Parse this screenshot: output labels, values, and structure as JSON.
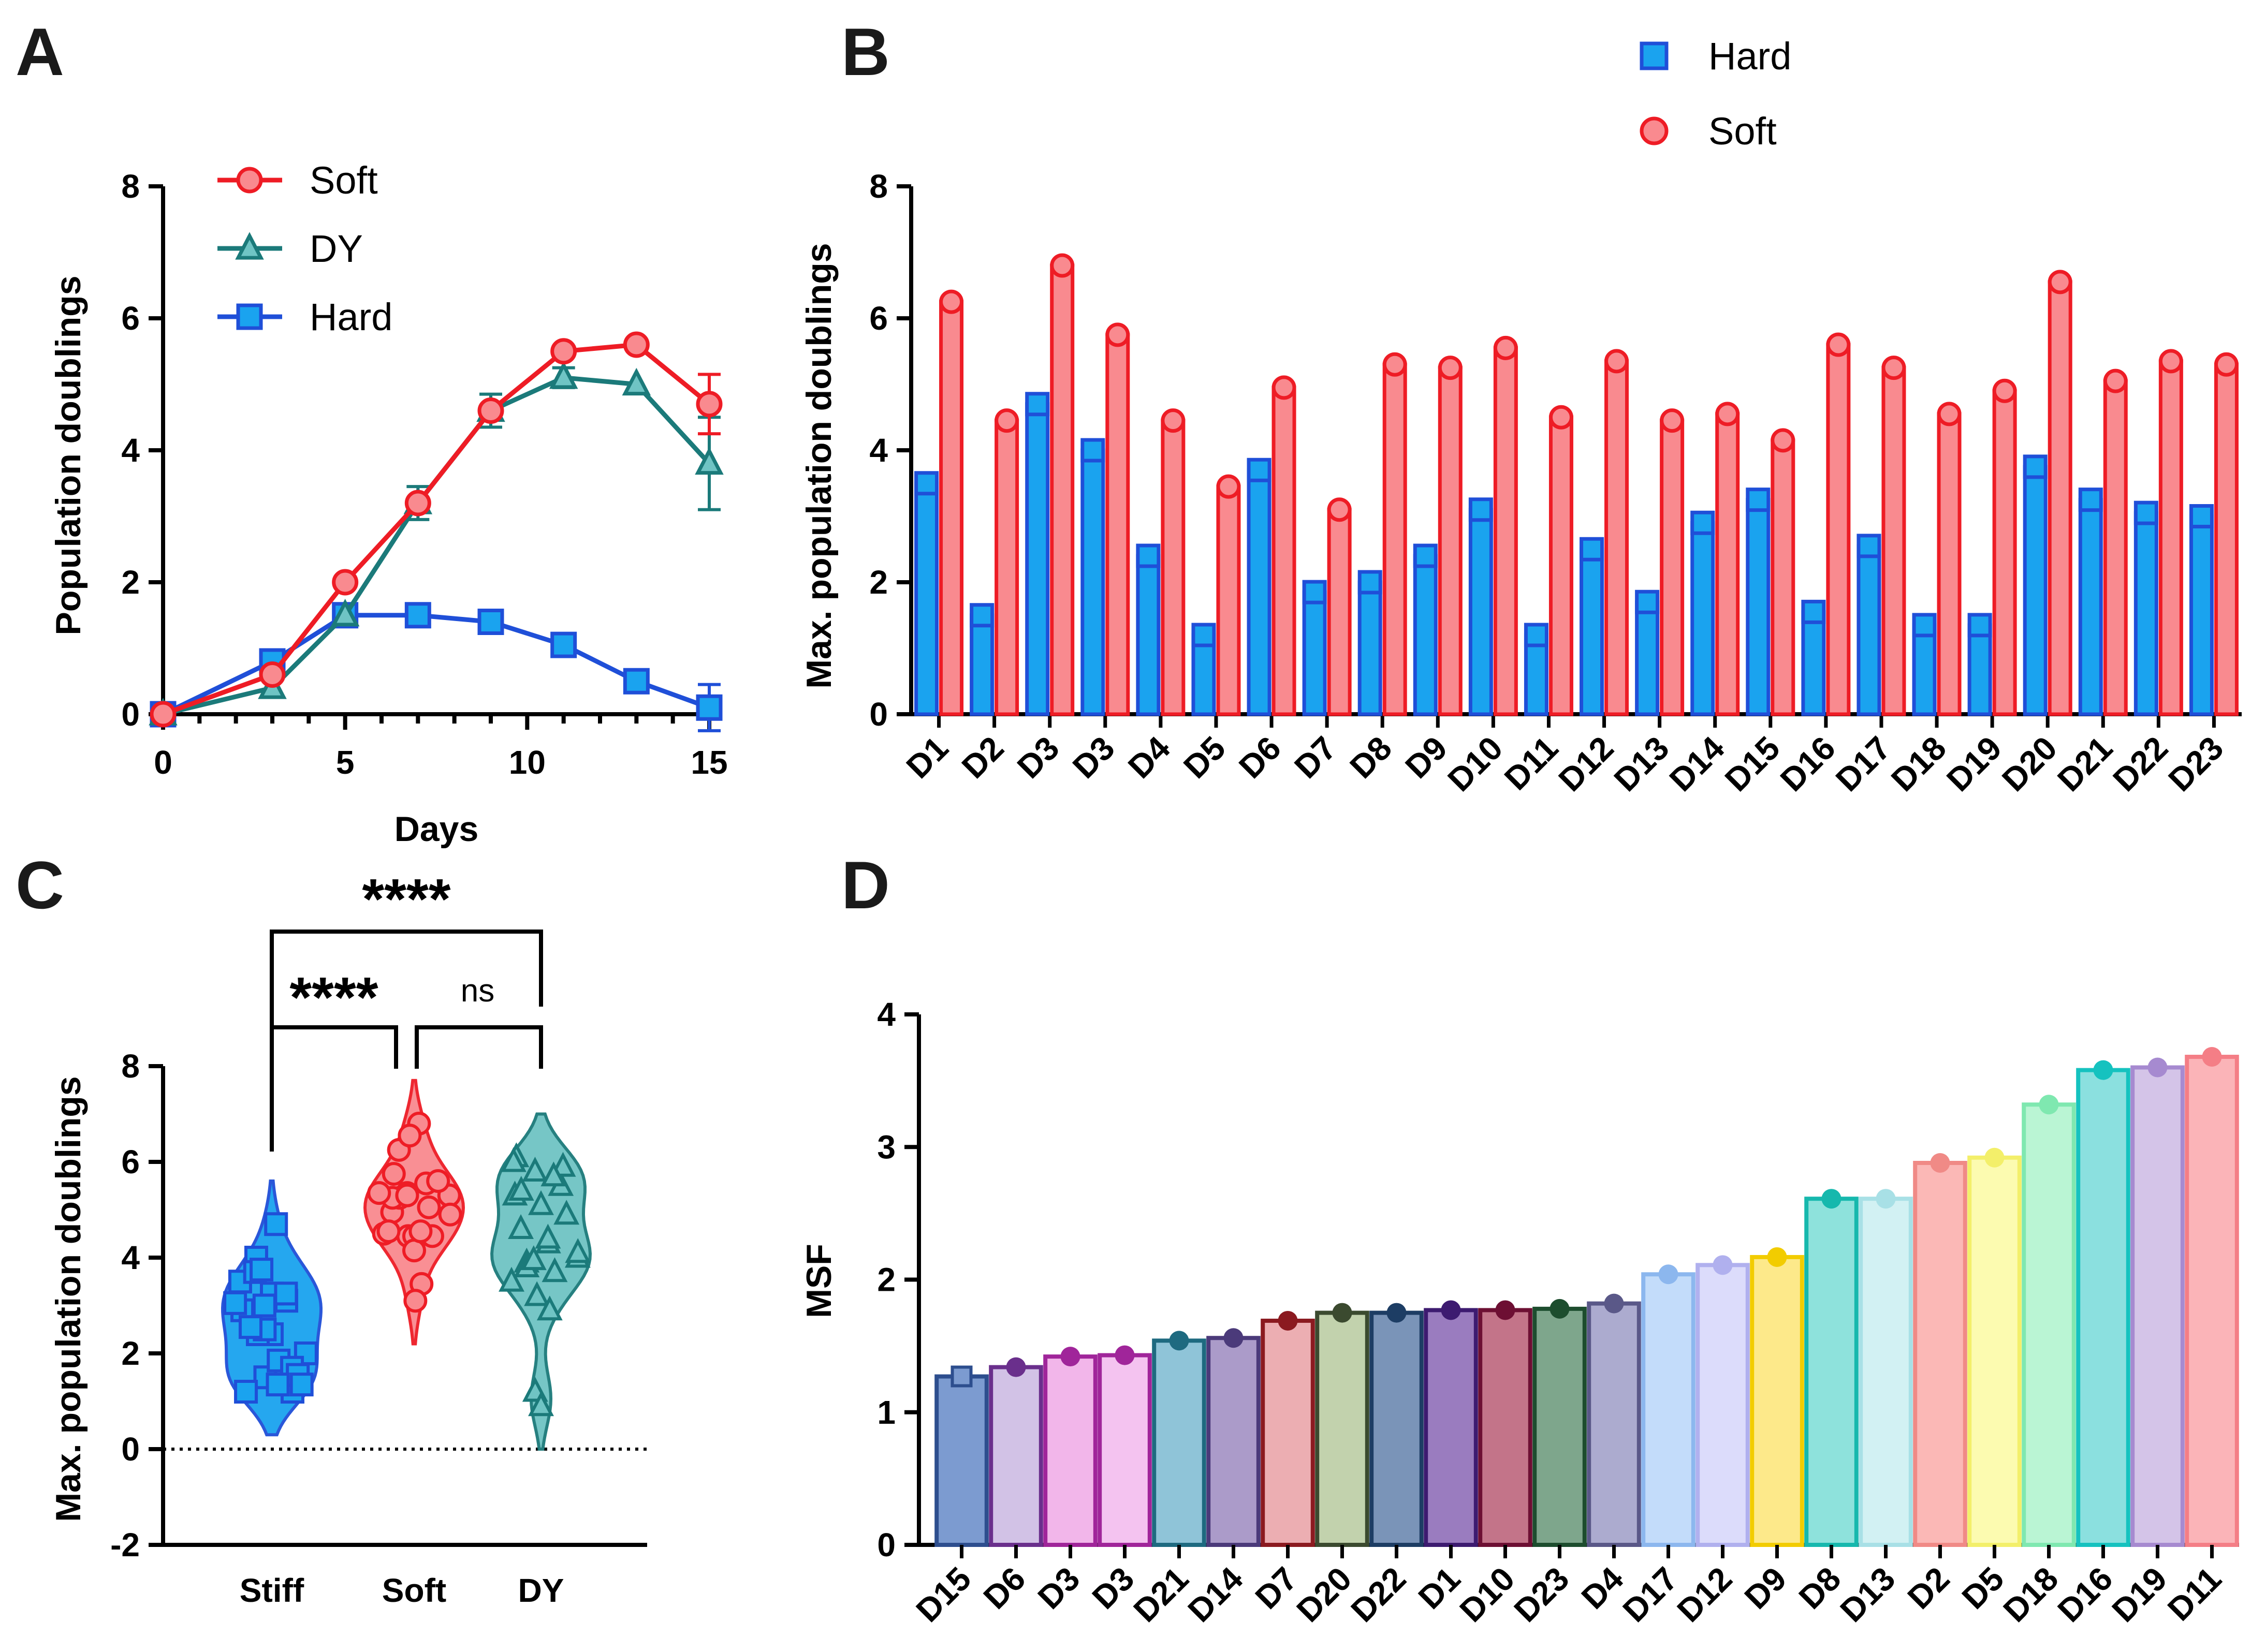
{
  "panels": {
    "A": {
      "letter": "A",
      "chart_data": {
        "type": "line",
        "xlabel": "Days",
        "ylabel": "Population doublings",
        "xlim": [
          0,
          15
        ],
        "ylim": [
          0,
          8
        ],
        "xticks": [
          "0",
          "5",
          "10",
          "15"
        ],
        "yticks": [
          "0",
          "2",
          "4",
          "6",
          "8"
        ],
        "legend_position": "top-left",
        "series": [
          {
            "name": "Soft",
            "color": "#ee1c25",
            "marker": "circle",
            "x": [
              0,
              3,
              5,
              7,
              9,
              11,
              13,
              15
            ],
            "y": [
              0,
              0.6,
              2.0,
              3.2,
              4.6,
              5.5,
              5.6,
              4.7
            ],
            "err": [
              0,
              0,
              0,
              0,
              0,
              0,
              0,
              0.45
            ]
          },
          {
            "name": "DY",
            "color": "#1b7a7a",
            "marker": "triangle",
            "x": [
              0,
              3,
              5,
              7,
              9,
              11,
              13,
              15
            ],
            "y": [
              0,
              0.4,
              1.5,
              3.2,
              4.6,
              5.1,
              5.0,
              3.8
            ],
            "err": [
              0,
              0,
              0,
              0.25,
              0.25,
              0.15,
              0,
              0.7
            ]
          },
          {
            "name": "Hard",
            "color": "#1f4fd8",
            "marker": "square",
            "x": [
              0,
              3,
              5,
              7,
              9,
              11,
              13,
              15
            ],
            "y": [
              0,
              0.8,
              1.5,
              1.5,
              1.4,
              1.05,
              0.5,
              0.1
            ],
            "err": [
              0,
              0,
              0,
              0,
              0,
              0,
              0,
              0.35
            ]
          }
        ]
      }
    },
    "B": {
      "letter": "B",
      "chart_data": {
        "type": "bar",
        "ylabel": "Max. population doublings",
        "ylim": [
          0,
          8
        ],
        "yticks": [
          "0",
          "2",
          "4",
          "6",
          "8"
        ],
        "legend_position": "top-center",
        "categories": [
          "D1",
          "D2",
          "D3",
          "D3",
          "D4",
          "D5",
          "D6",
          "D7",
          "D8",
          "D9",
          "D10",
          "D11",
          "D12",
          "D13",
          "D14",
          "D15",
          "D16",
          "D17",
          "D18",
          "D19",
          "D20",
          "D21",
          "D22",
          "D23"
        ],
        "series": [
          {
            "name": "Hard",
            "color": "#1aa3ef",
            "edge": "#1f4fd8",
            "values": [
              3.5,
              1.5,
              4.7,
              4.0,
              2.4,
              1.2,
              3.7,
              1.85,
              2.0,
              2.4,
              3.1,
              1.2,
              2.5,
              1.7,
              2.9,
              3.25,
              1.55,
              2.55,
              1.35,
              1.35,
              3.75,
              3.25,
              3.05,
              3.0
            ]
          },
          {
            "name": "Soft",
            "color": "#f98a8f",
            "edge": "#ee1c25",
            "values": [
              6.25,
              4.45,
              6.8,
              5.75,
              4.45,
              3.45,
              4.95,
              3.1,
              5.3,
              5.25,
              5.55,
              4.5,
              5.35,
              4.45,
              4.55,
              4.15,
              5.6,
              5.25,
              4.55,
              4.9,
              6.55,
              5.05,
              5.35,
              5.3
            ]
          }
        ]
      }
    },
    "C": {
      "letter": "C",
      "chart_data": {
        "type": "scatter",
        "subtype": "violin",
        "ylabel": "Max. population doublings",
        "ylim": [
          -2,
          8
        ],
        "yticks": [
          "-2",
          "0",
          "2",
          "4",
          "6",
          "8"
        ],
        "categories": [
          "Stiff",
          "Soft",
          "DY"
        ],
        "significance": [
          {
            "from": "Stiff",
            "to": "DY",
            "label": "****"
          },
          {
            "from": "Stiff",
            "to": "Soft",
            "label": "****"
          },
          {
            "from": "Soft",
            "to": "DY",
            "label": "ns"
          }
        ],
        "series": [
          {
            "name": "Stiff",
            "color": "#1aa3ef",
            "edge": "#1f4fd8",
            "marker": "square",
            "values": [
              3.5,
              1.5,
              4.7,
              4.0,
              2.4,
              1.2,
              3.7,
              1.85,
              2.0,
              2.4,
              3.1,
              1.2,
              2.5,
              1.7,
              2.9,
              3.25,
              1.55,
              2.55,
              1.35,
              1.35,
              3.75,
              3.25,
              3.05,
              3.0
            ]
          },
          {
            "name": "Soft",
            "color": "#f98a8f",
            "edge": "#ee1c25",
            "marker": "circle",
            "values": [
              6.25,
              4.45,
              6.8,
              5.75,
              4.45,
              3.45,
              4.95,
              3.1,
              5.3,
              5.25,
              5.55,
              4.5,
              5.35,
              4.45,
              4.55,
              4.15,
              5.6,
              5.25,
              4.55,
              4.9,
              6.55,
              5.05,
              5.35,
              5.3
            ]
          },
          {
            "name": "DY",
            "color": "#6fc4c4",
            "edge": "#1b7a7a",
            "marker": "triangle",
            "values": [
              6.1,
              5.8,
              5.5,
              5.3,
              5.1,
              4.9,
              4.6,
              4.3,
              4.0,
              3.9,
              3.7,
              3.5,
              3.2,
              2.9,
              1.2,
              0.9,
              5.9,
              5.4,
              4.4,
              4.1,
              3.8,
              5.7,
              6.0,
              3.95
            ]
          }
        ]
      }
    },
    "D": {
      "letter": "D",
      "chart_data": {
        "type": "bar",
        "ylabel": "MSF",
        "ylim": [
          0,
          4
        ],
        "yticks": [
          "0",
          "1",
          "2",
          "3",
          "4"
        ],
        "categories": [
          "D15",
          "D6",
          "D3",
          "D3",
          "D21",
          "D14",
          "D7",
          "D20",
          "D22",
          "D1",
          "D10",
          "D23",
          "D4",
          "D17",
          "D12",
          "D9",
          "D8",
          "D13",
          "D2",
          "D5",
          "D18",
          "D16",
          "D19",
          "D11"
        ],
        "values": [
          1.27,
          1.34,
          1.42,
          1.43,
          1.54,
          1.56,
          1.69,
          1.75,
          1.75,
          1.77,
          1.77,
          1.78,
          1.82,
          2.04,
          2.11,
          2.17,
          2.61,
          2.61,
          2.88,
          2.92,
          3.32,
          3.58,
          3.6,
          3.68
        ],
        "colors": [
          {
            "fill": "#7c9bd0",
            "edge": "#2d4e8e"
          },
          {
            "fill": "#d2c2e6",
            "edge": "#6a2f8c"
          },
          {
            "fill": "#f2b6ea",
            "edge": "#a0259a"
          },
          {
            "fill": "#f4c3f0",
            "edge": "#a0259a"
          },
          {
            "fill": "#8fc4d8",
            "edge": "#1e6a80"
          },
          {
            "fill": "#ab9bc9",
            "edge": "#4b3a7a"
          },
          {
            "fill": "#ecaeb2",
            "edge": "#8b1a20"
          },
          {
            "fill": "#c2d2ad",
            "edge": "#3b4a2f"
          },
          {
            "fill": "#7a94b8",
            "edge": "#1d3d64"
          },
          {
            "fill": "#9a7cbf",
            "edge": "#3d1b70"
          },
          {
            "fill": "#c37489",
            "edge": "#6d0f33"
          },
          {
            "fill": "#7ea68c",
            "edge": "#1d4d2e"
          },
          {
            "fill": "#acabcf",
            "edge": "#5a5888"
          },
          {
            "fill": "#c3dcfa",
            "edge": "#8cb7ee"
          },
          {
            "fill": "#dcdcfb",
            "edge": "#b0b0ee"
          },
          {
            "fill": "#fde98a",
            "edge": "#f2cc00"
          },
          {
            "fill": "#8ee2dc",
            "edge": "#16b8ad"
          },
          {
            "fill": "#d2f1f3",
            "edge": "#a8e0e6"
          },
          {
            "fill": "#fbb8b6",
            "edge": "#f08a86"
          },
          {
            "fill": "#fcfbb0",
            "edge": "#f3ef6a"
          },
          {
            "fill": "#baf5d4",
            "edge": "#7fe8b0"
          },
          {
            "fill": "#8be0df",
            "edge": "#15c2bf"
          },
          {
            "fill": "#d4c4e8",
            "edge": "#a68ad0"
          },
          {
            "fill": "#fbb4b8",
            "edge": "#f47e86"
          }
        ]
      }
    }
  }
}
